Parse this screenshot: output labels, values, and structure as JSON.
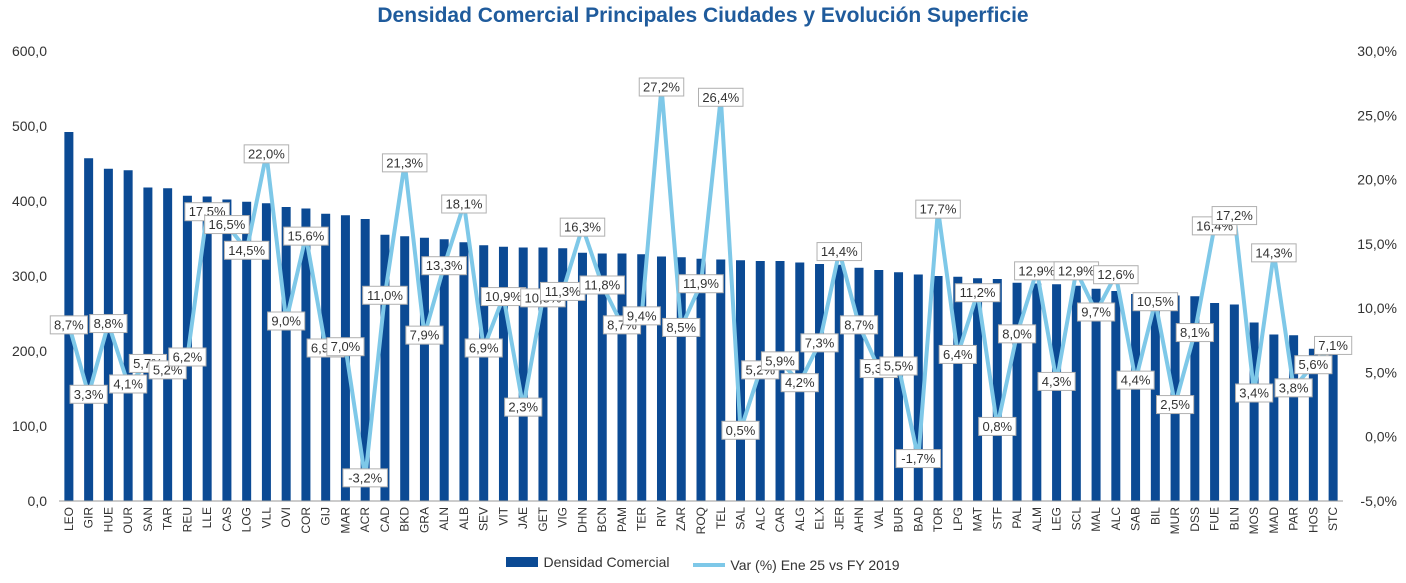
{
  "chart_data": {
    "type": "bar",
    "title": "Densidad Comercial Principales Ciudades y Evolución Superficie",
    "categories": [
      "LEO",
      "GIR",
      "HUE",
      "OUR",
      "SAN",
      "TAR",
      "REU",
      "LLE",
      "CAS",
      "LOG",
      "VLL",
      "OVI",
      "COR",
      "GIJ",
      "MAR",
      "ACR",
      "CAD",
      "BKD",
      "GRA",
      "ALN",
      "ALB",
      "SEV",
      "VIT",
      "JAE",
      "GET",
      "VIG",
      "DHN",
      "BCN",
      "PAM",
      "TER",
      "RIV",
      "ZAR",
      "ROQ",
      "TEL",
      "SAL",
      "ALC",
      "CAR",
      "ALG",
      "ELX",
      "JER",
      "AHN",
      "VAL",
      "BUR",
      "BAD",
      "TOR",
      "LPG",
      "MAT",
      "STF",
      "PAL",
      "ALM",
      "LEG",
      "SCL",
      "MAL",
      "ALC",
      "SAB",
      "BIL",
      "MUR",
      "DSS",
      "FUE",
      "BLN",
      "MOS",
      "MAD",
      "PAR",
      "HOS",
      "STC"
    ],
    "series": [
      {
        "name": "Densidad Comercial",
        "axis": "left",
        "color": "#0b4a94",
        "values": [
          492,
          457,
          443,
          441,
          418,
          417,
          407,
          406,
          402,
          399,
          397,
          392,
          390,
          383,
          381,
          376,
          355,
          353,
          351,
          349,
          345,
          341,
          339,
          338,
          338,
          337,
          331,
          330,
          330,
          329,
          326,
          325,
          323,
          322,
          321,
          320,
          320,
          318,
          316,
          315,
          311,
          308,
          305,
          302,
          300,
          299,
          297,
          296,
          291,
          290,
          289,
          287,
          283,
          280,
          276,
          275,
          274,
          273,
          264,
          262,
          238,
          222,
          221,
          203,
          205
        ]
      },
      {
        "name": "Var (%) Ene 25 vs FY 2019",
        "axis": "right",
        "color": "#7ec8e8",
        "values": [
          8.7,
          3.3,
          8.8,
          4.1,
          5.7,
          5.2,
          6.2,
          17.5,
          16.5,
          14.5,
          22.0,
          9.0,
          15.6,
          6.9,
          7.0,
          -3.2,
          11.0,
          21.3,
          7.9,
          13.3,
          18.1,
          6.9,
          10.9,
          2.3,
          10.8,
          11.3,
          16.3,
          11.8,
          8.7,
          9.4,
          27.2,
          8.5,
          11.9,
          26.4,
          0.5,
          5.2,
          5.9,
          4.2,
          7.3,
          14.4,
          8.7,
          5.3,
          5.5,
          -1.7,
          17.7,
          6.4,
          11.2,
          0.8,
          8.0,
          12.9,
          4.3,
          12.9,
          9.7,
          12.6,
          4.4,
          10.5,
          2.5,
          8.1,
          16.4,
          17.2,
          3.4,
          14.3,
          3.8,
          5.6,
          7.1
        ],
        "labels": [
          "8,7%",
          "3,3%",
          "8,8%",
          "4,1%",
          "5,7%",
          "5,2%",
          "6,2%",
          "17,5%",
          "16,5%",
          "14,5%",
          "22,0%",
          "9,0%",
          "15,6%",
          "6,9%",
          "7,0%",
          "-3,2%",
          "11,0%",
          "21,3%",
          "7,9%",
          "13,3%",
          "18,1%",
          "6,9%",
          "10,9%",
          "2,3%",
          "10,8%",
          "11,3%",
          "16,3%",
          "11,8%",
          "8,7%",
          "9,4%",
          "27,2%",
          "8,5%",
          "11,9%",
          "26,4%",
          "0,5%",
          "5,2%",
          "5,9%",
          "4,2%",
          "7,3%",
          "14,4%",
          "8,7%",
          "5,3%",
          "5,5%",
          "-1,7%",
          "17,7%",
          "6,4%",
          "11,2%",
          "0,8%",
          "8,0%",
          "12,9%",
          "4,3%",
          "12,9%",
          "9,7%",
          "12,6%",
          "4,4%",
          "10,5%",
          "2,5%",
          "8,1%",
          "16,4%",
          "17,2%",
          "3,4%",
          "14,3%",
          "3,8%",
          "5,6%",
          "7,1%"
        ]
      }
    ],
    "y_left": {
      "ylim": [
        0,
        600
      ],
      "ticks": [
        "0,0",
        "100,0",
        "200,0",
        "300,0",
        "400,0",
        "500,0",
        "600,0"
      ]
    },
    "y_right": {
      "ylim": [
        -5,
        30
      ],
      "ticks": [
        "-5,0%",
        "0,0%",
        "5,0%",
        "10,0%",
        "15,0%",
        "20,0%",
        "25,0%",
        "30,0%"
      ]
    },
    "grid": false,
    "legend_position": "bottom"
  }
}
